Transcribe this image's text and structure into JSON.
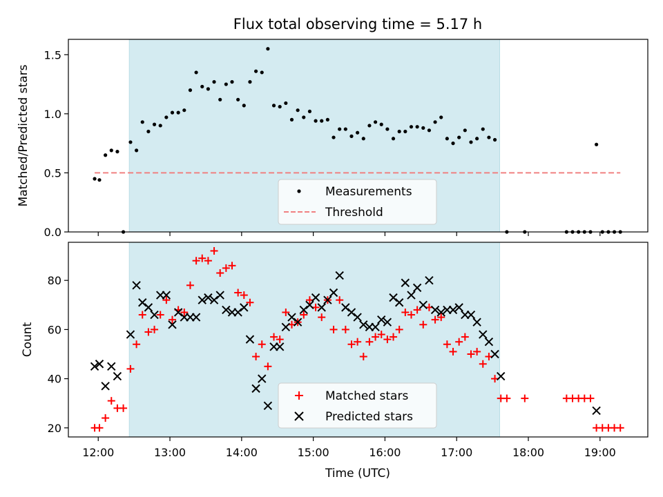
{
  "chart_data": [
    {
      "type": "scatter",
      "title": "Flux total observing time = 5.17 h",
      "ylabel": "Matched/Predicted stars",
      "xlabel": "",
      "ylim": [
        0,
        1.63
      ],
      "yticks": [
        0.0,
        0.5,
        1.0,
        1.5
      ],
      "ytick_labels": [
        "0.0",
        "0.5",
        "1.0",
        "1.5"
      ],
      "x_range": [
        "11:35",
        "19:40"
      ],
      "shaded_interval": {
        "start": "12:26",
        "end": "17:36",
        "color": "#d4ebf1"
      },
      "legend": {
        "location": "lower center",
        "entries": [
          "Measurements",
          "Threshold"
        ]
      },
      "series": [
        {
          "name": "Measurements",
          "color": "#000000",
          "marker": "dot",
          "points": [
            [
              "11:57",
              0.45
            ],
            [
              "12:01",
              0.44
            ],
            [
              "12:06",
              0.65
            ],
            [
              "12:11",
              0.69
            ],
            [
              "12:16",
              0.68
            ],
            [
              "12:21",
              0.0
            ],
            [
              "12:27",
              0.76
            ],
            [
              "12:32",
              0.69
            ],
            [
              "12:37",
              0.93
            ],
            [
              "12:42",
              0.85
            ],
            [
              "12:47",
              0.91
            ],
            [
              "12:52",
              0.9
            ],
            [
              "12:57",
              0.97
            ],
            [
              "13:02",
              1.01
            ],
            [
              "13:07",
              1.01
            ],
            [
              "13:12",
              1.03
            ],
            [
              "13:17",
              1.2
            ],
            [
              "13:22",
              1.35
            ],
            [
              "13:27",
              1.23
            ],
            [
              "13:32",
              1.21
            ],
            [
              "13:37",
              1.27
            ],
            [
              "13:42",
              1.12
            ],
            [
              "13:47",
              1.25
            ],
            [
              "13:52",
              1.27
            ],
            [
              "13:57",
              1.12
            ],
            [
              "14:02",
              1.07
            ],
            [
              "14:07",
              1.27
            ],
            [
              "14:12",
              1.36
            ],
            [
              "14:17",
              1.35
            ],
            [
              "14:22",
              1.55
            ],
            [
              "14:27",
              1.07
            ],
            [
              "14:32",
              1.06
            ],
            [
              "14:37",
              1.09
            ],
            [
              "14:42",
              0.95
            ],
            [
              "14:47",
              1.03
            ],
            [
              "14:52",
              0.97
            ],
            [
              "14:57",
              1.02
            ],
            [
              "15:02",
              0.94
            ],
            [
              "15:07",
              0.94
            ],
            [
              "15:12",
              0.95
            ],
            [
              "15:17",
              0.8
            ],
            [
              "15:22",
              0.87
            ],
            [
              "15:27",
              0.87
            ],
            [
              "15:32",
              0.81
            ],
            [
              "15:37",
              0.84
            ],
            [
              "15:42",
              0.79
            ],
            [
              "15:47",
              0.9
            ],
            [
              "15:52",
              0.93
            ],
            [
              "15:57",
              0.91
            ],
            [
              "16:02",
              0.87
            ],
            [
              "16:07",
              0.79
            ],
            [
              "16:12",
              0.85
            ],
            [
              "16:17",
              0.85
            ],
            [
              "16:22",
              0.89
            ],
            [
              "16:27",
              0.89
            ],
            [
              "16:32",
              0.88
            ],
            [
              "16:37",
              0.86
            ],
            [
              "16:42",
              0.93
            ],
            [
              "16:47",
              0.97
            ],
            [
              "16:52",
              0.79
            ],
            [
              "16:57",
              0.75
            ],
            [
              "17:02",
              0.8
            ],
            [
              "17:07",
              0.86
            ],
            [
              "17:12",
              0.76
            ],
            [
              "17:17",
              0.79
            ],
            [
              "17:22",
              0.87
            ],
            [
              "17:27",
              0.8
            ],
            [
              "17:32",
              0.78
            ],
            [
              "17:42",
              0.0
            ],
            [
              "17:57",
              0.0
            ],
            [
              "18:32",
              0.0
            ],
            [
              "18:37",
              0.0
            ],
            [
              "18:42",
              0.0
            ],
            [
              "18:47",
              0.0
            ],
            [
              "18:52",
              0.0
            ],
            [
              "18:57",
              0.74
            ],
            [
              "19:02",
              0.0
            ],
            [
              "19:07",
              0.0
            ],
            [
              "19:12",
              0.0
            ],
            [
              "19:17",
              0.0
            ]
          ]
        },
        {
          "name": "Threshold",
          "color": "#f08080",
          "style": "dashed",
          "points": [
            [
              "11:57",
              0.5
            ],
            [
              "19:17",
              0.5
            ]
          ]
        }
      ]
    },
    {
      "type": "scatter",
      "title": "",
      "ylabel": "Count",
      "xlabel": "Time (UTC)",
      "ylim": [
        16.3,
        95.5
      ],
      "yticks": [
        20,
        40,
        60,
        80
      ],
      "ytick_labels": [
        "20",
        "40",
        "60",
        "80"
      ],
      "x_range": [
        "11:35",
        "19:40"
      ],
      "xticks": [
        "12:00",
        "13:00",
        "14:00",
        "15:00",
        "16:00",
        "17:00",
        "18:00",
        "19:00"
      ],
      "xtick_labels": [
        "12:00",
        "13:00",
        "14:00",
        "15:00",
        "16:00",
        "17:00",
        "18:00",
        "19:00"
      ],
      "shaded_interval": {
        "start": "12:26",
        "end": "17:36",
        "color": "#d4ebf1"
      },
      "legend": {
        "location": "lower center",
        "entries": [
          "Matched stars",
          "Predicted stars"
        ]
      },
      "series": [
        {
          "name": "Matched stars",
          "color": "#ff0000",
          "marker": "plus",
          "points": [
            [
              "11:57",
              20
            ],
            [
              "12:01",
              20
            ],
            [
              "12:06",
              24
            ],
            [
              "12:11",
              31
            ],
            [
              "12:16",
              28
            ],
            [
              "12:21",
              28
            ],
            [
              "12:27",
              44
            ],
            [
              "12:32",
              54
            ],
            [
              "12:37",
              66
            ],
            [
              "12:42",
              59
            ],
            [
              "12:47",
              60
            ],
            [
              "12:52",
              66
            ],
            [
              "12:57",
              72
            ],
            [
              "13:02",
              64
            ],
            [
              "13:07",
              68
            ],
            [
              "13:12",
              67
            ],
            [
              "13:17",
              78
            ],
            [
              "13:22",
              88
            ],
            [
              "13:27",
              89
            ],
            [
              "13:32",
              88
            ],
            [
              "13:37",
              92
            ],
            [
              "13:42",
              83
            ],
            [
              "13:47",
              85
            ],
            [
              "13:52",
              86
            ],
            [
              "13:57",
              75
            ],
            [
              "14:02",
              74
            ],
            [
              "14:07",
              71
            ],
            [
              "14:12",
              49
            ],
            [
              "14:17",
              54
            ],
            [
              "14:22",
              45
            ],
            [
              "14:27",
              57
            ],
            [
              "14:32",
              56
            ],
            [
              "14:37",
              67
            ],
            [
              "14:42",
              62
            ],
            [
              "14:47",
              63
            ],
            [
              "14:52",
              66
            ],
            [
              "14:57",
              72
            ],
            [
              "15:02",
              69
            ],
            [
              "15:07",
              65
            ],
            [
              "15:12",
              72
            ],
            [
              "15:17",
              60
            ],
            [
              "15:22",
              72
            ],
            [
              "15:27",
              60
            ],
            [
              "15:32",
              54
            ],
            [
              "15:37",
              55
            ],
            [
              "15:42",
              49
            ],
            [
              "15:47",
              55
            ],
            [
              "15:52",
              57
            ],
            [
              "15:57",
              58
            ],
            [
              "16:02",
              56
            ],
            [
              "16:07",
              57
            ],
            [
              "16:12",
              60
            ],
            [
              "16:17",
              67
            ],
            [
              "16:22",
              66
            ],
            [
              "16:27",
              68
            ],
            [
              "16:32",
              62
            ],
            [
              "16:37",
              69
            ],
            [
              "16:42",
              64
            ],
            [
              "16:47",
              65
            ],
            [
              "16:52",
              54
            ],
            [
              "16:57",
              51
            ],
            [
              "17:02",
              55
            ],
            [
              "17:07",
              57
            ],
            [
              "17:12",
              50
            ],
            [
              "17:17",
              51
            ],
            [
              "17:22",
              46
            ],
            [
              "17:27",
              49
            ],
            [
              "17:32",
              40
            ],
            [
              "17:37",
              32
            ],
            [
              "17:42",
              32
            ],
            [
              "17:57",
              32
            ],
            [
              "18:32",
              32
            ],
            [
              "18:37",
              32
            ],
            [
              "18:42",
              32
            ],
            [
              "18:47",
              32
            ],
            [
              "18:52",
              32
            ],
            [
              "18:57",
              20
            ],
            [
              "19:02",
              20
            ],
            [
              "19:07",
              20
            ],
            [
              "19:12",
              20
            ],
            [
              "19:17",
              20
            ]
          ]
        },
        {
          "name": "Predicted stars",
          "color": "#000000",
          "marker": "cross",
          "points": [
            [
              "11:57",
              45
            ],
            [
              "12:01",
              46
            ],
            [
              "12:06",
              37
            ],
            [
              "12:11",
              45
            ],
            [
              "12:16",
              41
            ],
            [
              "12:27",
              58
            ],
            [
              "12:32",
              78
            ],
            [
              "12:37",
              71
            ],
            [
              "12:42",
              69
            ],
            [
              "12:47",
              66
            ],
            [
              "12:52",
              74
            ],
            [
              "12:57",
              74
            ],
            [
              "13:02",
              62
            ],
            [
              "13:07",
              67
            ],
            [
              "13:12",
              65
            ],
            [
              "13:17",
              65
            ],
            [
              "13:22",
              65
            ],
            [
              "13:27",
              72
            ],
            [
              "13:32",
              73
            ],
            [
              "13:37",
              72
            ],
            [
              "13:42",
              74
            ],
            [
              "13:47",
              68
            ],
            [
              "13:52",
              67
            ],
            [
              "13:57",
              67
            ],
            [
              "14:02",
              69
            ],
            [
              "14:07",
              56
            ],
            [
              "14:12",
              36
            ],
            [
              "14:17",
              40
            ],
            [
              "14:22",
              29
            ],
            [
              "14:27",
              53
            ],
            [
              "14:32",
              53
            ],
            [
              "14:37",
              61
            ],
            [
              "14:42",
              65
            ],
            [
              "14:47",
              63
            ],
            [
              "14:52",
              68
            ],
            [
              "14:57",
              70
            ],
            [
              "15:02",
              73
            ],
            [
              "15:07",
              69
            ],
            [
              "15:12",
              72
            ],
            [
              "15:17",
              75
            ],
            [
              "15:22",
              82
            ],
            [
              "15:27",
              69
            ],
            [
              "15:32",
              67
            ],
            [
              "15:37",
              65
            ],
            [
              "15:42",
              62
            ],
            [
              "15:47",
              61
            ],
            [
              "15:52",
              61
            ],
            [
              "15:57",
              64
            ],
            [
              "16:02",
              63
            ],
            [
              "16:07",
              73
            ],
            [
              "16:12",
              71
            ],
            [
              "16:17",
              79
            ],
            [
              "16:22",
              74
            ],
            [
              "16:27",
              77
            ],
            [
              "16:32",
              70
            ],
            [
              "16:37",
              80
            ],
            [
              "16:42",
              68
            ],
            [
              "16:47",
              67
            ],
            [
              "16:52",
              68
            ],
            [
              "16:57",
              68
            ],
            [
              "17:02",
              69
            ],
            [
              "17:07",
              66
            ],
            [
              "17:12",
              66
            ],
            [
              "17:17",
              63
            ],
            [
              "17:22",
              58
            ],
            [
              "17:27",
              55
            ],
            [
              "17:32",
              50
            ],
            [
              "17:37",
              41
            ],
            [
              "18:57",
              27
            ]
          ]
        }
      ]
    }
  ]
}
